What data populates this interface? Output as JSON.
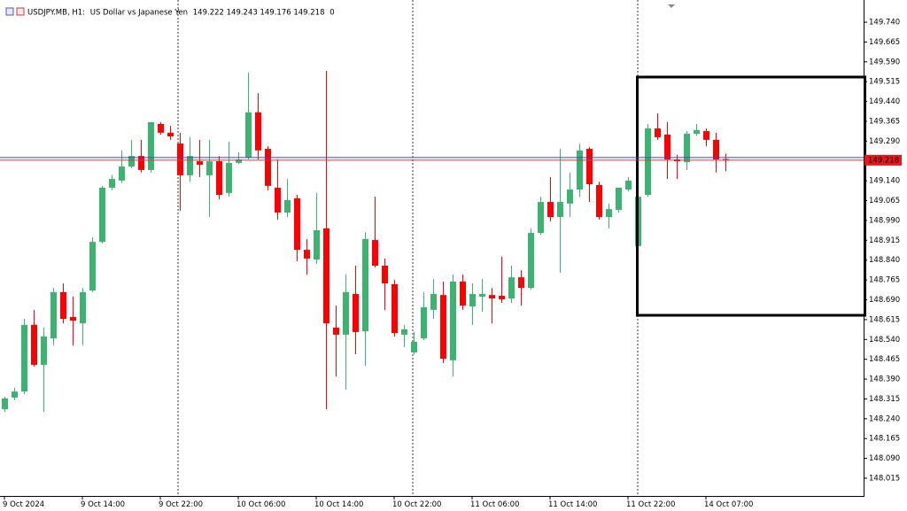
{
  "chart_data": {
    "type": "candlestick",
    "symbol": "USDJPY.MB, H1:",
    "description": "US Dollar vs Japanese Yen",
    "spread": 0,
    "up_color": "#3cb371",
    "down_color": "#ff0000",
    "open": [
      148.276,
      148.32,
      148.343,
      148.595,
      148.444,
      148.544,
      148.719,
      148.625,
      148.601,
      148.725,
      148.909,
      149.114,
      149.141,
      149.194,
      149.234,
      149.181,
      149.355,
      149.322,
      149.281,
      149.161,
      149.214,
      149.161,
      149.214,
      149.094,
      149.208,
      149.228,
      149.399,
      149.261,
      149.114,
      149.02,
      149.074,
      148.879,
      148.842,
      148.96,
      148.585,
      148.558,
      148.712,
      148.571,
      148.916,
      148.819,
      148.749,
      148.558,
      148.491,
      148.544,
      148.652,
      148.708,
      148.461,
      148.759,
      148.665,
      148.702,
      148.708,
      148.705,
      148.695,
      148.775,
      148.735,
      148.943,
      149.06,
      149.003,
      149.054,
      149.107,
      149.261,
      149.124,
      149.003,
      149.03,
      149.107,
      148.893,
      149.087,
      149.338,
      149.315,
      149.221,
      149.211,
      149.318,
      149.328,
      149.295,
      149.222
    ],
    "high": [
      148.323,
      148.357,
      148.618,
      148.652,
      148.585,
      148.735,
      148.752,
      148.702,
      148.735,
      148.926,
      149.121,
      149.161,
      149.255,
      149.295,
      149.295,
      149.362,
      149.362,
      149.348,
      149.322,
      149.305,
      149.295,
      149.295,
      149.234,
      149.288,
      149.248,
      149.549,
      149.472,
      149.271,
      149.221,
      149.147,
      149.087,
      148.92,
      149.094,
      149.556,
      148.668,
      148.786,
      148.819,
      148.946,
      149.08,
      148.846,
      148.765,
      148.595,
      148.568,
      148.719,
      148.769,
      148.759,
      148.786,
      148.786,
      148.752,
      148.769,
      148.735,
      148.853,
      148.819,
      148.802,
      148.96,
      149.08,
      149.154,
      149.261,
      149.171,
      149.281,
      149.268,
      149.137,
      149.054,
      149.114,
      149.154,
      149.094,
      149.355,
      149.395,
      149.362,
      149.238,
      149.328,
      149.355,
      149.338,
      149.322,
      149.243
    ],
    "low": [
      148.266,
      148.31,
      148.333,
      148.437,
      148.266,
      148.518,
      148.601,
      148.518,
      148.518,
      148.719,
      148.903,
      149.104,
      149.131,
      149.188,
      149.171,
      149.171,
      149.315,
      149.295,
      149.027,
      149.137,
      149.154,
      149.003,
      149.07,
      149.08,
      149.204,
      149.221,
      149.221,
      149.104,
      148.993,
      149.003,
      148.836,
      148.786,
      148.826,
      148.276,
      148.4,
      148.35,
      148.484,
      148.44,
      148.812,
      148.652,
      148.551,
      148.511,
      148.484,
      148.538,
      148.618,
      148.451,
      148.4,
      148.652,
      148.595,
      148.645,
      148.601,
      148.678,
      148.678,
      148.668,
      148.729,
      148.936,
      148.987,
      148.792,
      149.003,
      149.08,
      149.06,
      148.993,
      148.96,
      149.02,
      149.1,
      148.886,
      149.08,
      149.295,
      149.147,
      149.147,
      149.181,
      149.311,
      149.271,
      149.171,
      149.176
    ],
    "close": [
      148.317,
      148.343,
      148.595,
      148.444,
      148.551,
      148.719,
      148.618,
      148.611,
      148.719,
      148.909,
      149.114,
      149.147,
      149.194,
      149.234,
      149.181,
      149.362,
      149.322,
      149.308,
      149.161,
      149.234,
      149.201,
      149.214,
      149.087,
      149.208,
      149.221,
      149.399,
      149.255,
      149.121,
      149.02,
      149.067,
      148.879,
      148.846,
      148.953,
      148.601,
      148.558,
      148.719,
      148.568,
      148.92,
      148.819,
      148.752,
      148.564,
      148.578,
      148.531,
      148.662,
      148.712,
      148.467,
      148.759,
      148.668,
      148.712,
      148.712,
      148.695,
      148.692,
      148.775,
      148.735,
      148.943,
      149.06,
      149.003,
      149.06,
      149.107,
      149.255,
      149.127,
      149.003,
      149.033,
      149.114,
      149.141,
      149.08,
      149.338,
      149.305,
      149.221,
      149.214,
      149.318,
      149.332,
      149.295,
      149.221,
      149.218
    ],
    "time_labels": [
      {
        "label": "9 Oct 2024",
        "index": 0
      },
      {
        "label": "9 Oct 14:00",
        "index": 8
      },
      {
        "label": "9 Oct 22:00",
        "index": 16
      },
      {
        "label": "10 Oct 06:00",
        "index": 24
      },
      {
        "label": "10 Oct 14:00",
        "index": 32
      },
      {
        "label": "10 Oct 22:00",
        "index": 40
      },
      {
        "label": "11 Oct 06:00",
        "index": 48
      },
      {
        "label": "11 Oct 14:00",
        "index": 56
      },
      {
        "label": "11 Oct 22:00",
        "index": 64
      },
      {
        "label": "14 Oct 07:00",
        "index": 72
      }
    ],
    "bid": 149.218,
    "ask": 149.228,
    "ylim": [
      147.948,
      149.824
    ],
    "yticks": [
      {
        "value": 149.74,
        "label": "149.740"
      },
      {
        "value": 149.665,
        "label": "149.665"
      },
      {
        "value": 149.59,
        "label": "149.590"
      },
      {
        "value": 149.515,
        "label": "149.515"
      },
      {
        "value": 149.44,
        "label": "149.440"
      },
      {
        "value": 149.365,
        "label": "149.365"
      },
      {
        "value": 149.29,
        "label": "149.290"
      },
      {
        "value": 149.14,
        "label": "149.140"
      },
      {
        "value": 149.065,
        "label": "149.065"
      },
      {
        "value": 148.99,
        "label": "148.990"
      },
      {
        "value": 148.915,
        "label": "148.915"
      },
      {
        "value": 148.84,
        "label": "148.840"
      },
      {
        "value": 148.765,
        "label": "148.765"
      },
      {
        "value": 148.69,
        "label": "148.690"
      },
      {
        "value": 148.615,
        "label": "148.615"
      },
      {
        "value": 148.54,
        "label": "148.540"
      },
      {
        "value": 148.465,
        "label": "148.465"
      },
      {
        "value": 148.39,
        "label": "148.390"
      },
      {
        "value": 148.315,
        "label": "148.315"
      },
      {
        "value": 148.24,
        "label": "148.240"
      },
      {
        "value": 148.165,
        "label": "148.165"
      },
      {
        "value": 148.09,
        "label": "148.090"
      },
      {
        "value": 148.015,
        "label": "148.015"
      }
    ]
  }
}
